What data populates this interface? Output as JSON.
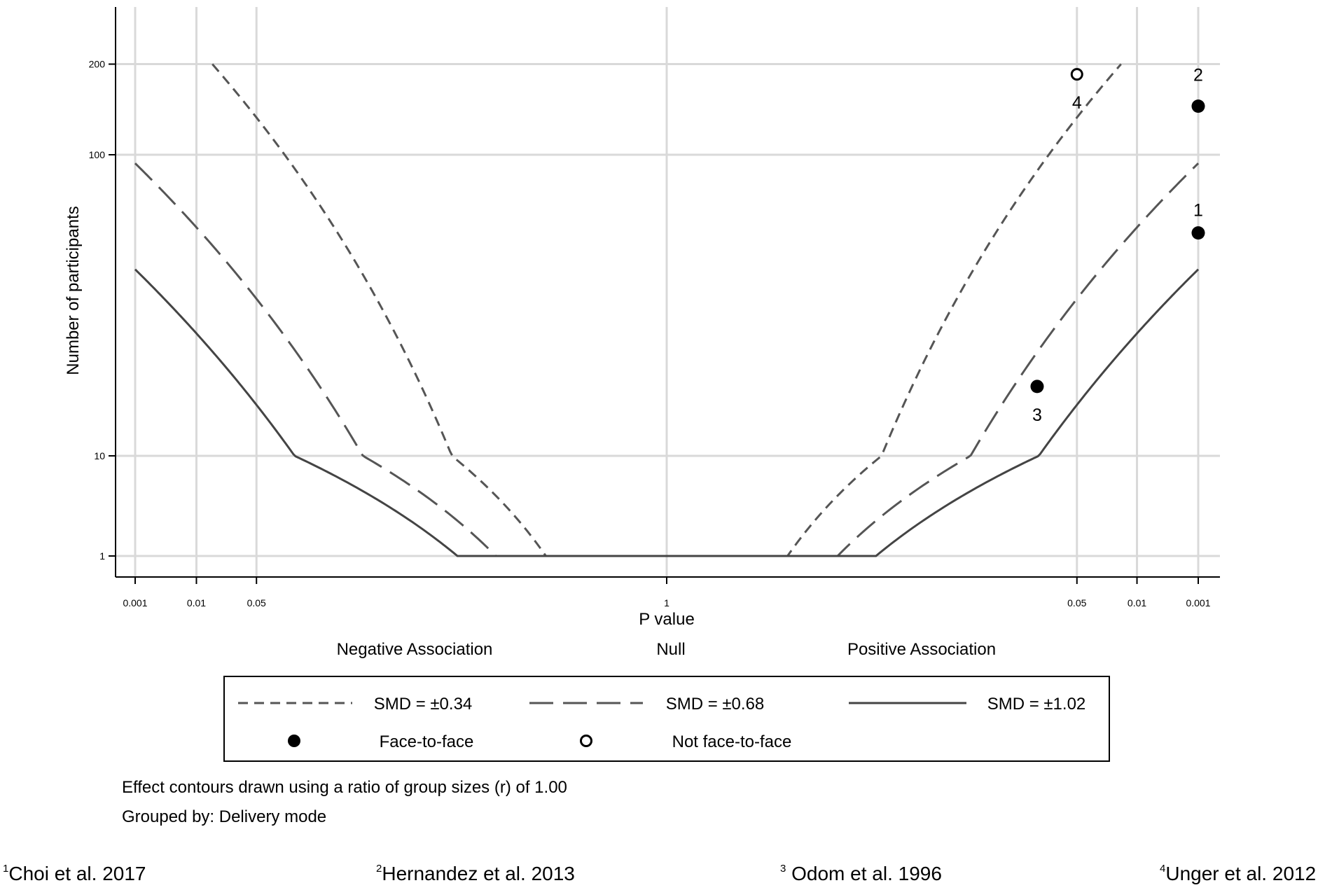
{
  "chart_data": {
    "type": "scatter",
    "subtype": "albatross plot",
    "ylabel": "Number of participants",
    "xlabel": "P value",
    "y_scale": "log",
    "y_ticks": [
      1,
      10,
      100,
      200
    ],
    "y_tick_labels": [
      "1",
      "10",
      "100",
      "200"
    ],
    "x_ticks": [
      {
        "label": "0.001",
        "side": "negative",
        "p": 0.001
      },
      {
        "label": "0.01",
        "side": "negative",
        "p": 0.01
      },
      {
        "label": "0.05",
        "side": "negative",
        "p": 0.05
      },
      {
        "label": "1",
        "side": "null",
        "p": 1
      },
      {
        "label": "0.05",
        "side": "positive",
        "p": 0.05
      },
      {
        "label": "0.01",
        "side": "positive",
        "p": 0.01
      },
      {
        "label": "0.001",
        "side": "positive",
        "p": 0.001
      }
    ],
    "regions": [
      "Negative Association",
      "Null",
      "Positive Association"
    ],
    "grid": true,
    "contour_ratio": 1.0,
    "contours": [
      {
        "name": "SMD = ±0.34",
        "smd": 0.34,
        "style": "short-dash",
        "color": "#555555"
      },
      {
        "name": "SMD = ±0.68",
        "smd": 0.68,
        "style": "long-dash",
        "color": "#555555"
      },
      {
        "name": "SMD = ±1.02",
        "smd": 1.02,
        "style": "solid",
        "color": "#444444"
      }
    ],
    "groups": [
      {
        "name": "Face-to-face",
        "marker": "filled-circle"
      },
      {
        "name": "Not face-to-face",
        "marker": "hollow-circle"
      }
    ],
    "points": [
      {
        "label": "1",
        "side": "positive",
        "p": 0.001,
        "n": 55,
        "group": "Face-to-face"
      },
      {
        "label": "2",
        "side": "positive",
        "p": 0.001,
        "n": 145,
        "group": "Face-to-face"
      },
      {
        "label": "3",
        "side": "positive",
        "p": 0.11,
        "n": 17,
        "group": "Face-to-face"
      },
      {
        "label": "4",
        "side": "positive",
        "p": 0.05,
        "n": 185,
        "group": "Not face-to-face"
      }
    ],
    "legend_position": "bottom"
  },
  "notes": {
    "line1": "Effect contours drawn using a ratio of group sizes (r) of 1.00",
    "line2": "Grouped by: Delivery mode"
  },
  "citations": [
    {
      "num": "1",
      "text": "Choi et al. 2017"
    },
    {
      "num": "2",
      "text": "Hernandez et al. 2013"
    },
    {
      "num": "3",
      "text": " Odom et al. 1996"
    },
    {
      "num": "4",
      "text": "Unger et al. 2012"
    }
  ],
  "colors": {
    "grid": "#d9d9d9",
    "axis": "#000000",
    "contour": "#555555",
    "marker": "#000000"
  }
}
